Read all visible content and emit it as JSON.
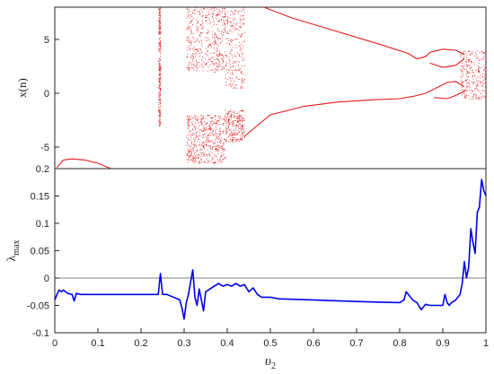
{
  "chart_data": [
    {
      "type": "scatter",
      "description_panel": "bifurcation diagram",
      "ylabel": "x(n)",
      "xlim": [
        0,
        1
      ],
      "ylim": [
        -7,
        8
      ],
      "yticks": [
        5,
        0,
        -5
      ],
      "color": "#e41a1c",
      "branches": [
        {
          "name": "upper-loop",
          "x": [
            0.485,
            0.55,
            0.65,
            0.75,
            0.82,
            0.84,
            0.86,
            0.87
          ],
          "y": [
            8.0,
            7.0,
            5.8,
            4.6,
            3.7,
            3.2,
            3.4,
            3.8
          ]
        },
        {
          "name": "lower-branch",
          "x": [
            0.44,
            0.5,
            0.58,
            0.66,
            0.74,
            0.8,
            0.83,
            0.86,
            0.88
          ],
          "y": [
            -4.0,
            -2.0,
            -1.2,
            -0.8,
            -0.6,
            -0.5,
            -0.3,
            0.0,
            0.4
          ]
        },
        {
          "name": "left-arc",
          "x": [
            0.005,
            0.02,
            0.04,
            0.07,
            0.1,
            0.13
          ],
          "y": [
            -6.9,
            -6.2,
            -6.1,
            -6.2,
            -6.5,
            -7.0
          ]
        }
      ],
      "chaotic_regions": [
        [
          0.24,
          0.245
        ],
        [
          0.305,
          0.44
        ],
        [
          0.94,
          1.0
        ]
      ]
    },
    {
      "type": "line",
      "xlabel": "υ",
      "xlabel_sub": "2",
      "ylabel": "λ",
      "ylabel_sub": "max",
      "xlim": [
        0,
        1
      ],
      "ylim": [
        -0.1,
        0.2
      ],
      "xticks": [
        "0",
        "0.1",
        "0.2",
        "0.3",
        "0.4",
        "0.5",
        "0.6",
        "0.7",
        "0.8",
        "0.9",
        "1"
      ],
      "yticks": [
        "0.2",
        "0.15",
        "0.1",
        "0.05",
        "0",
        "-0.05",
        "-0.1"
      ],
      "color": "#0000ee",
      "zero_line_color": "#808080",
      "series": [
        {
          "x": [
            0,
            0.005,
            0.01,
            0.015,
            0.02,
            0.03,
            0.04,
            0.045,
            0.05,
            0.06,
            0.1,
            0.15,
            0.2,
            0.24,
            0.245,
            0.25,
            0.255,
            0.26,
            0.29,
            0.295,
            0.3,
            0.305,
            0.31,
            0.32,
            0.325,
            0.33,
            0.335,
            0.34,
            0.345,
            0.35,
            0.36,
            0.37,
            0.38,
            0.39,
            0.4,
            0.41,
            0.42,
            0.43,
            0.44,
            0.45,
            0.46,
            0.47,
            0.48,
            0.5,
            0.52,
            0.6,
            0.7,
            0.8,
            0.81,
            0.815,
            0.82,
            0.83,
            0.84,
            0.85,
            0.86,
            0.87,
            0.88,
            0.9,
            0.905,
            0.91,
            0.915,
            0.92,
            0.93,
            0.94,
            0.945,
            0.95,
            0.955,
            0.96,
            0.965,
            0.97,
            0.975,
            0.98,
            0.985,
            0.99,
            0.995,
            1.0
          ],
          "y": [
            -0.04,
            -0.03,
            -0.022,
            -0.025,
            -0.022,
            -0.028,
            -0.03,
            -0.042,
            -0.028,
            -0.03,
            -0.03,
            -0.03,
            -0.03,
            -0.03,
            0.008,
            -0.03,
            -0.03,
            -0.03,
            -0.04,
            -0.055,
            -0.075,
            -0.045,
            -0.03,
            0.015,
            -0.035,
            -0.05,
            -0.02,
            -0.04,
            -0.06,
            -0.025,
            -0.02,
            -0.015,
            -0.01,
            -0.015,
            -0.012,
            -0.015,
            -0.01,
            -0.015,
            -0.012,
            -0.025,
            -0.018,
            -0.03,
            -0.035,
            -0.035,
            -0.038,
            -0.04,
            -0.043,
            -0.045,
            -0.04,
            -0.025,
            -0.03,
            -0.04,
            -0.045,
            -0.058,
            -0.048,
            -0.05,
            -0.05,
            -0.05,
            -0.03,
            -0.045,
            -0.05,
            -0.045,
            -0.04,
            -0.03,
            -0.01,
            0.03,
            0.0,
            0.02,
            0.09,
            0.065,
            0.045,
            0.12,
            0.13,
            0.18,
            0.16,
            0.15
          ]
        }
      ]
    }
  ]
}
